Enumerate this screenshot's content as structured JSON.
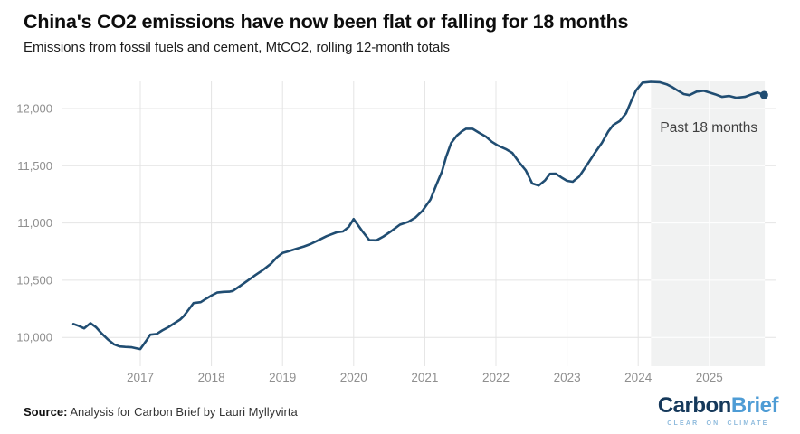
{
  "header": {
    "title": "China's CO2 emissions have now been flat or falling for 18 months",
    "subtitle": "Emissions from fossil fuels and cement, MtCO2, rolling 12-month totals"
  },
  "footer": {
    "source_label": "Source:",
    "source_text": "Analysis for Carbon Brief by Lauri Myllyvirta",
    "logo": {
      "part1": "Carbon",
      "part2": "Brief",
      "tagline": "CLEAR ON CLIMATE"
    }
  },
  "colors": {
    "line": "#204d72",
    "marker": "#204d72",
    "gridline": "#e4e4e4",
    "gridline_in_region": "#ffffff",
    "highlight_region": "#f1f2f2",
    "axis_label": "#8f8f8f",
    "annotation": "#3f3f3f",
    "title": "#0d0d0d",
    "subtitle": "#1c1c1c",
    "logo_navy": "#16395b",
    "logo_blue": "#4e9cd5",
    "logo_tagline": "#8fbbdd"
  },
  "chart_data": {
    "type": "line",
    "title": "China's CO2 emissions have now been flat or falling for 18 months",
    "subtitle": "Emissions from fossil fuels and cement, MtCO2, rolling 12-month totals",
    "xlabel": "",
    "ylabel": "",
    "unit": "MtCO2",
    "grid": true,
    "legend": false,
    "xlim": [
      2015.9,
      2025.93
    ],
    "ylim": [
      9750,
      12240
    ],
    "x_ticks": [
      2017,
      2018,
      2019,
      2020,
      2021,
      2022,
      2023,
      2024,
      2025
    ],
    "y_ticks": [
      10000,
      10500,
      11000,
      11500,
      12000
    ],
    "y_tick_labels": [
      "10,000",
      "10,500",
      "11,000",
      "11,500",
      "12,000"
    ],
    "highlight_region": {
      "label": "Past 18 months",
      "x_start": 2024.18,
      "x_end": 2025.78
    },
    "end_marker": true,
    "series": [
      {
        "name": "China CO2 emissions, rolling 12-month total",
        "points": [
          [
            2016.06,
            10118
          ],
          [
            2016.13,
            10102
          ],
          [
            2016.21,
            10079
          ],
          [
            2016.3,
            10125
          ],
          [
            2016.38,
            10088
          ],
          [
            2016.46,
            10032
          ],
          [
            2016.54,
            9985
          ],
          [
            2016.63,
            9940
          ],
          [
            2016.71,
            9921
          ],
          [
            2016.79,
            9917
          ],
          [
            2016.88,
            9914
          ],
          [
            2016.96,
            9903
          ],
          [
            2017.0,
            9898
          ],
          [
            2017.08,
            9968
          ],
          [
            2017.14,
            10024
          ],
          [
            2017.23,
            10030
          ],
          [
            2017.31,
            10062
          ],
          [
            2017.4,
            10092
          ],
          [
            2017.48,
            10124
          ],
          [
            2017.56,
            10156
          ],
          [
            2017.61,
            10185
          ],
          [
            2017.69,
            10250
          ],
          [
            2017.75,
            10300
          ],
          [
            2017.85,
            10308
          ],
          [
            2017.93,
            10340
          ],
          [
            2018.0,
            10366
          ],
          [
            2018.08,
            10392
          ],
          [
            2018.17,
            10398
          ],
          [
            2018.25,
            10400
          ],
          [
            2018.3,
            10406
          ],
          [
            2018.4,
            10448
          ],
          [
            2018.5,
            10492
          ],
          [
            2018.62,
            10545
          ],
          [
            2018.73,
            10592
          ],
          [
            2018.84,
            10645
          ],
          [
            2018.92,
            10700
          ],
          [
            2019.0,
            10738
          ],
          [
            2019.08,
            10752
          ],
          [
            2019.18,
            10772
          ],
          [
            2019.3,
            10795
          ],
          [
            2019.39,
            10815
          ],
          [
            2019.5,
            10848
          ],
          [
            2019.62,
            10885
          ],
          [
            2019.76,
            10918
          ],
          [
            2019.85,
            10926
          ],
          [
            2019.93,
            10965
          ],
          [
            2020.0,
            11035
          ],
          [
            2020.12,
            10930
          ],
          [
            2020.22,
            10850
          ],
          [
            2020.32,
            10848
          ],
          [
            2020.42,
            10882
          ],
          [
            2020.53,
            10930
          ],
          [
            2020.65,
            10985
          ],
          [
            2020.77,
            11010
          ],
          [
            2020.87,
            11048
          ],
          [
            2020.97,
            11108
          ],
          [
            2021.08,
            11205
          ],
          [
            2021.17,
            11345
          ],
          [
            2021.24,
            11448
          ],
          [
            2021.3,
            11578
          ],
          [
            2021.37,
            11698
          ],
          [
            2021.45,
            11763
          ],
          [
            2021.52,
            11800
          ],
          [
            2021.58,
            11823
          ],
          [
            2021.67,
            11823
          ],
          [
            2021.77,
            11786
          ],
          [
            2021.86,
            11754
          ],
          [
            2021.94,
            11710
          ],
          [
            2022.03,
            11675
          ],
          [
            2022.14,
            11645
          ],
          [
            2022.23,
            11612
          ],
          [
            2022.33,
            11528
          ],
          [
            2022.42,
            11460
          ],
          [
            2022.51,
            11345
          ],
          [
            2022.6,
            11327
          ],
          [
            2022.69,
            11372
          ],
          [
            2022.76,
            11430
          ],
          [
            2022.84,
            11431
          ],
          [
            2022.92,
            11398
          ],
          [
            2023.0,
            11368
          ],
          [
            2023.08,
            11360
          ],
          [
            2023.17,
            11406
          ],
          [
            2023.27,
            11498
          ],
          [
            2023.38,
            11603
          ],
          [
            2023.49,
            11700
          ],
          [
            2023.58,
            11800
          ],
          [
            2023.65,
            11856
          ],
          [
            2023.74,
            11890
          ],
          [
            2023.83,
            11958
          ],
          [
            2023.9,
            12062
          ],
          [
            2023.97,
            12158
          ],
          [
            2024.06,
            12226
          ],
          [
            2024.18,
            12233
          ],
          [
            2024.3,
            12230
          ],
          [
            2024.4,
            12212
          ],
          [
            2024.47,
            12190
          ],
          [
            2024.56,
            12156
          ],
          [
            2024.64,
            12126
          ],
          [
            2024.72,
            12117
          ],
          [
            2024.82,
            12148
          ],
          [
            2024.92,
            12156
          ],
          [
            2025.0,
            12140
          ],
          [
            2025.08,
            12125
          ],
          [
            2025.18,
            12102
          ],
          [
            2025.28,
            12110
          ],
          [
            2025.38,
            12094
          ],
          [
            2025.5,
            12102
          ],
          [
            2025.6,
            12125
          ],
          [
            2025.68,
            12140
          ],
          [
            2025.77,
            12118
          ]
        ]
      }
    ]
  }
}
